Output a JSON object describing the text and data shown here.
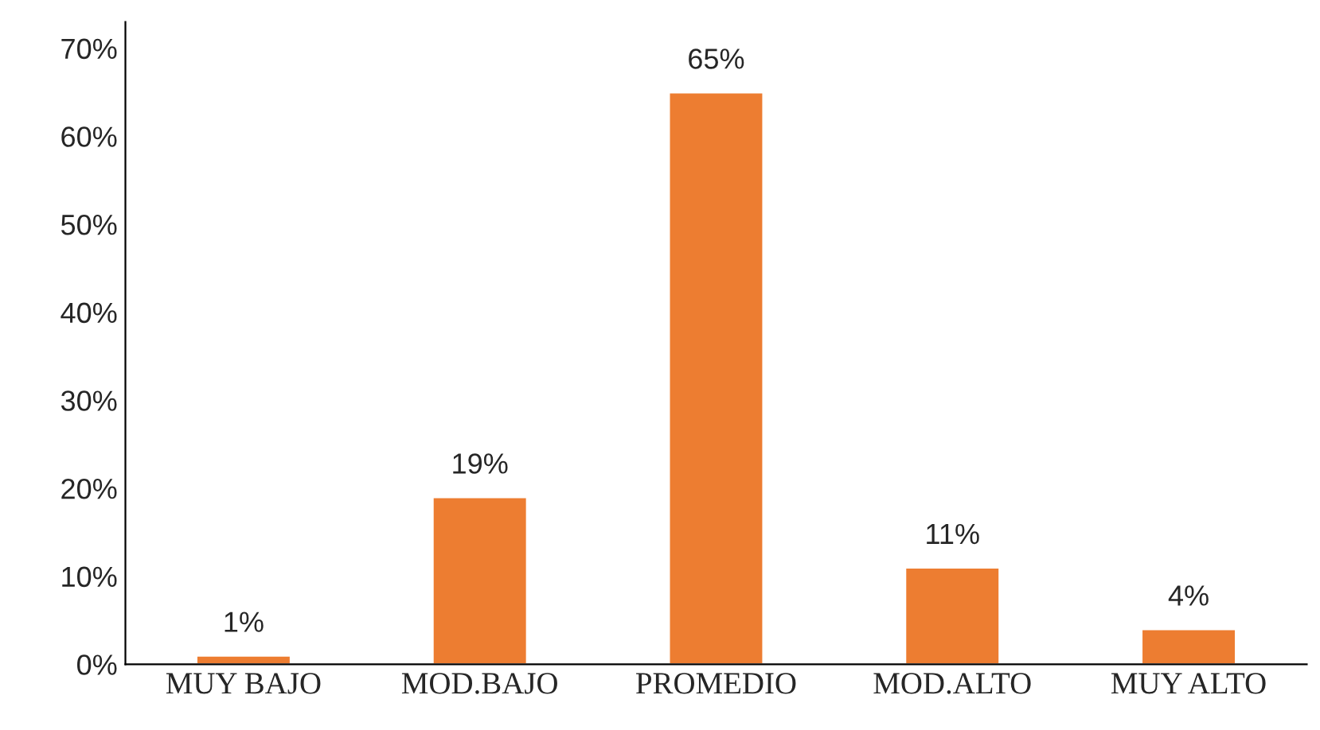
{
  "chart_data": {
    "type": "bar",
    "categories": [
      "MUY BAJO",
      "MOD.BAJO",
      "PROMEDIO",
      "MOD.ALTO",
      "MUY ALTO"
    ],
    "values": [
      1,
      19,
      65,
      11,
      4
    ],
    "value_labels": [
      "1%",
      "19%",
      "65%",
      "11%",
      "4%"
    ],
    "color": "#ed7d31",
    "ylim": [
      0,
      73
    ],
    "yticks": [
      {
        "value": 0,
        "label": "0%"
      },
      {
        "value": 10,
        "label": "10%"
      },
      {
        "value": 20,
        "label": "20%"
      },
      {
        "value": 30,
        "label": "30%"
      },
      {
        "value": 40,
        "label": "40%"
      },
      {
        "value": 50,
        "label": "50%"
      },
      {
        "value": 60,
        "label": "60%"
      },
      {
        "value": 70,
        "label": "70%"
      }
    ],
    "grid": false,
    "legend": false
  }
}
